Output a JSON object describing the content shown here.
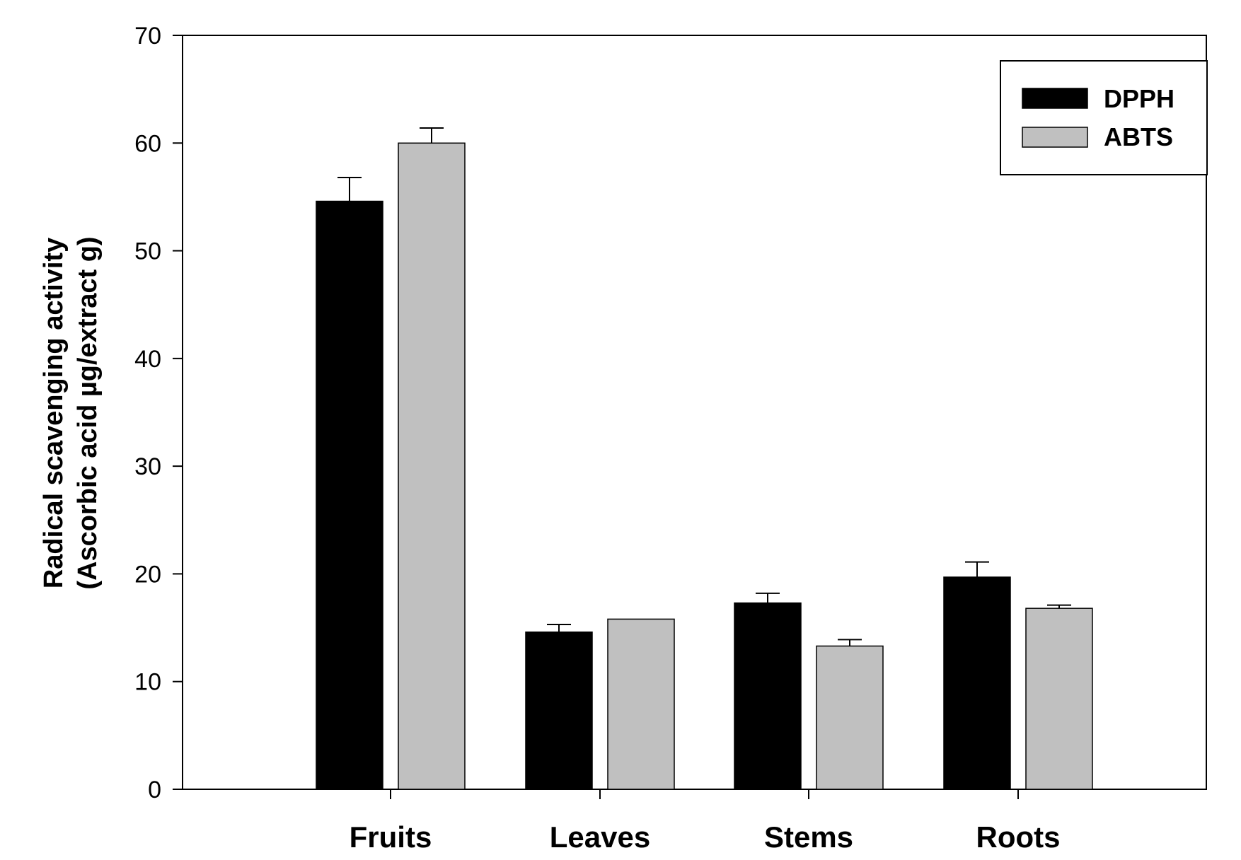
{
  "chart_data": {
    "type": "bar",
    "categories": [
      "Fruits",
      "Leaves",
      "Stems",
      "Roots"
    ],
    "series": [
      {
        "name": "DPPH",
        "values": [
          54.6,
          14.6,
          17.3,
          19.7
        ],
        "errors": [
          2.2,
          0.7,
          0.9,
          1.4
        ],
        "color": "#000000"
      },
      {
        "name": "ABTS",
        "values": [
          60.0,
          15.8,
          13.3,
          16.8
        ],
        "errors": [
          1.4,
          0.0,
          0.6,
          0.3
        ],
        "color": "#c0c0c0"
      }
    ],
    "ylim": [
      0,
      70
    ],
    "yticks": [
      0,
      10,
      20,
      30,
      40,
      50,
      60,
      70
    ],
    "ylabel_line1": "Radical scavenging activity",
    "ylabel_line2": "(Ascorbic acid µg/extract g)",
    "xlabel": "",
    "title": "",
    "grid": false,
    "legend_position": "top-right"
  }
}
